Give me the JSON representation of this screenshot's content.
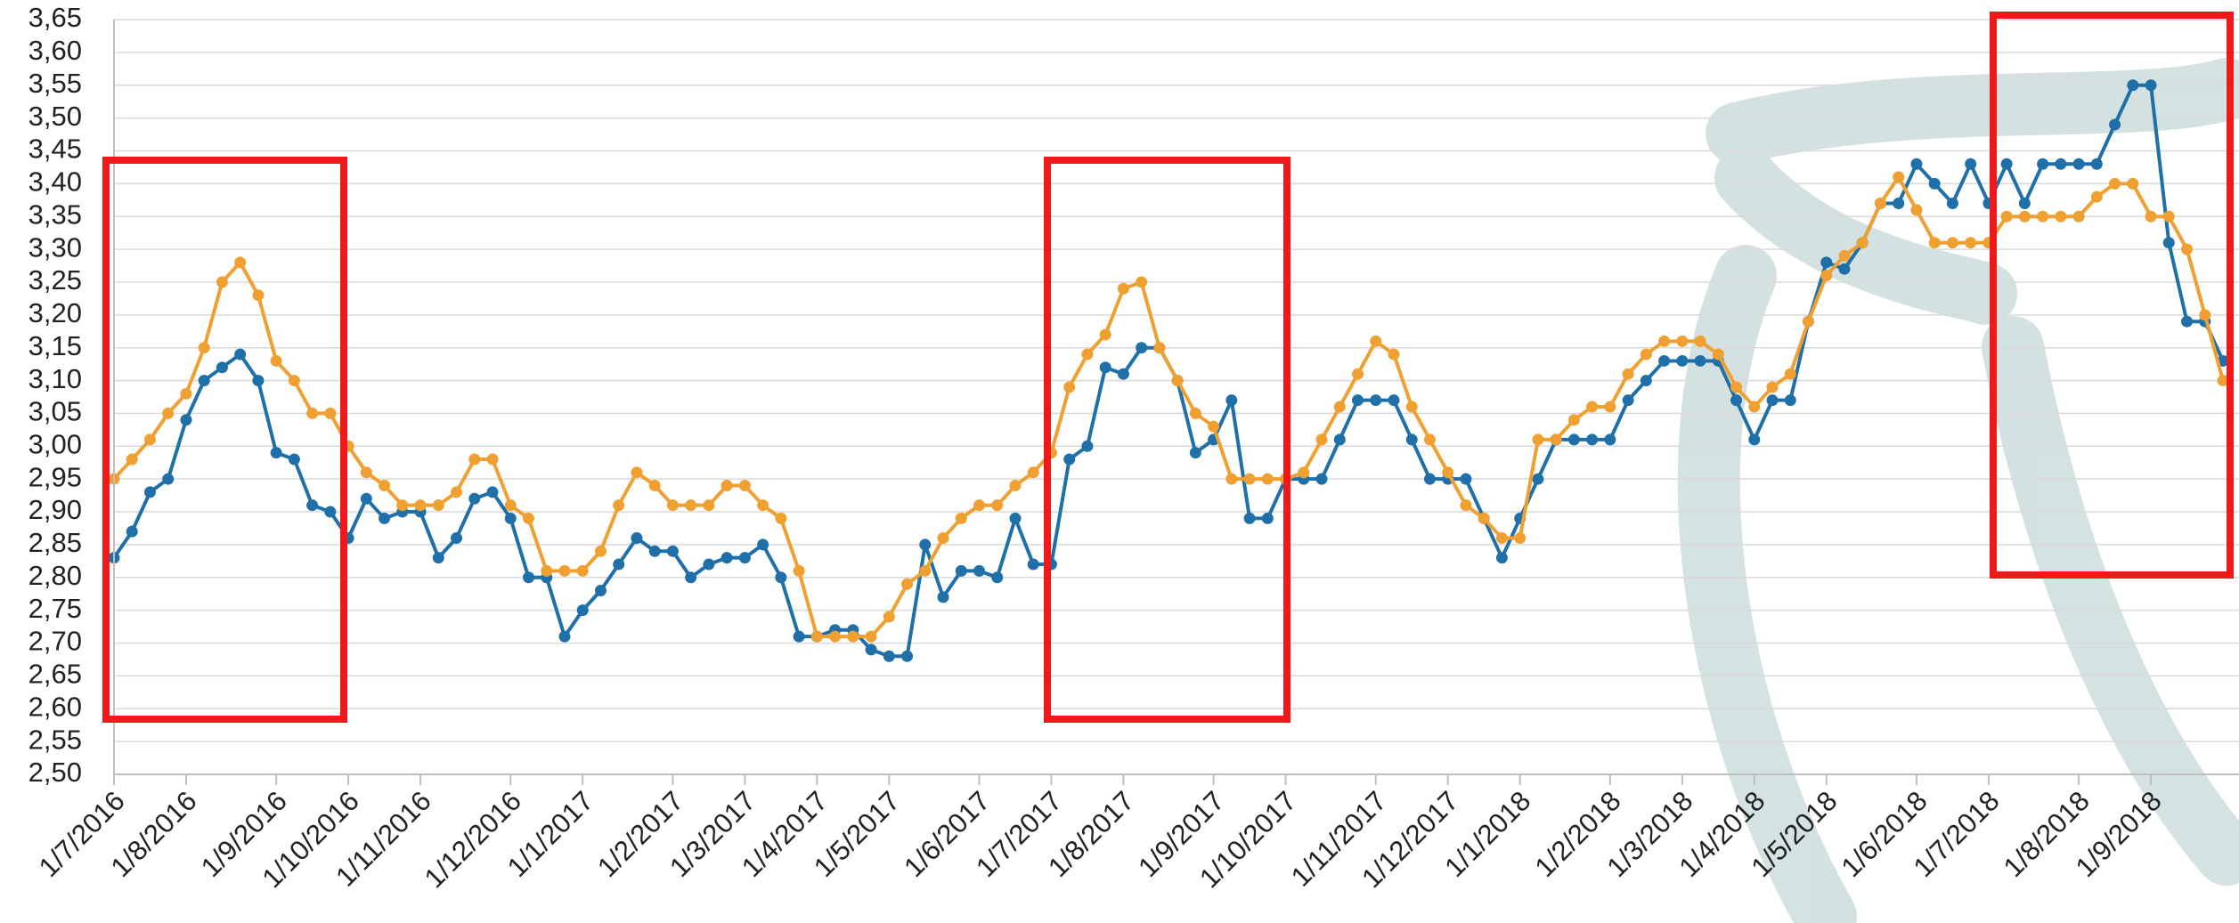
{
  "chart_data": {
    "type": "line",
    "categories": [
      "1/7/2016",
      null,
      null,
      null,
      "1/8/2016",
      null,
      null,
      null,
      null,
      "1/9/2016",
      null,
      null,
      null,
      "1/10/2016",
      null,
      null,
      null,
      "1/11/2016",
      null,
      null,
      null,
      null,
      "1/12/2016",
      null,
      null,
      null,
      "1/1/2017",
      null,
      null,
      null,
      null,
      "1/2/2017",
      null,
      null,
      null,
      "1/3/2017",
      null,
      null,
      null,
      "1/4/2017",
      null,
      null,
      null,
      "1/5/2017",
      null,
      null,
      null,
      null,
      "1/6/2017",
      null,
      null,
      null,
      "1/7/2017",
      null,
      null,
      null,
      "1/8/2017",
      null,
      null,
      null,
      null,
      "1/9/2017",
      null,
      null,
      null,
      "1/10/2017",
      null,
      null,
      null,
      null,
      "1/11/2017",
      null,
      null,
      null,
      "1/12/2017",
      null,
      null,
      null,
      "1/1/2018",
      null,
      null,
      null,
      null,
      "1/2/2018",
      null,
      null,
      null,
      "1/3/2018",
      null,
      null,
      null,
      "1/4/2018",
      null,
      null,
      null,
      "1/5/2018",
      null,
      null,
      null,
      null,
      "1/6/2018",
      null,
      null,
      null,
      "1/7/2018",
      null,
      null,
      null,
      null,
      "1/8/2018",
      null,
      null,
      null,
      "1/9/2018",
      null,
      null,
      null,
      null
    ],
    "series": [
      {
        "color": "#1f6fa8",
        "values": [
          2.83,
          2.87,
          2.93,
          2.95,
          3.04,
          3.1,
          3.12,
          3.14,
          3.1,
          2.99,
          2.98,
          2.91,
          2.9,
          2.86,
          2.92,
          2.89,
          2.9,
          2.9,
          2.83,
          2.86,
          2.92,
          2.93,
          2.89,
          2.8,
          2.8,
          2.71,
          2.75,
          2.78,
          2.82,
          2.86,
          2.84,
          2.84,
          2.8,
          2.82,
          2.83,
          2.83,
          2.85,
          2.8,
          2.71,
          2.71,
          2.72,
          2.72,
          2.69,
          2.68,
          2.68,
          2.85,
          2.77,
          2.81,
          2.81,
          2.8,
          2.89,
          2.82,
          2.82,
          2.98,
          3.0,
          3.12,
          3.11,
          3.15,
          3.15,
          3.1,
          2.99,
          3.01,
          3.07,
          2.89,
          2.89,
          2.95,
          2.95,
          2.95,
          3.01,
          3.07,
          3.07,
          3.07,
          3.01,
          2.95,
          2.95,
          2.95,
          2.89,
          2.83,
          2.89,
          2.95,
          3.01,
          3.01,
          3.01,
          3.01,
          3.07,
          3.1,
          3.13,
          3.13,
          3.13,
          3.13,
          3.07,
          3.01,
          3.07,
          3.07,
          3.19,
          3.28,
          3.27,
          3.31,
          3.37,
          3.37,
          3.43,
          3.4,
          3.37,
          3.43,
          3.37,
          3.43,
          3.37,
          3.43,
          3.43,
          3.43,
          3.43,
          3.49,
          3.55,
          3.55,
          3.31,
          3.19,
          3.19,
          3.13
        ]
      },
      {
        "color": "#f0a030",
        "values": [
          2.95,
          2.98,
          3.01,
          3.05,
          3.08,
          3.15,
          3.25,
          3.28,
          3.23,
          3.13,
          3.1,
          3.05,
          3.05,
          3.0,
          2.96,
          2.94,
          2.91,
          2.91,
          2.91,
          2.93,
          2.98,
          2.98,
          2.91,
          2.89,
          2.81,
          2.81,
          2.81,
          2.84,
          2.91,
          2.96,
          2.94,
          2.91,
          2.91,
          2.91,
          2.94,
          2.94,
          2.91,
          2.89,
          2.81,
          2.71,
          2.71,
          2.71,
          2.71,
          2.74,
          2.79,
          2.81,
          2.86,
          2.89,
          2.91,
          2.91,
          2.94,
          2.96,
          2.99,
          3.09,
          3.14,
          3.17,
          3.24,
          3.25,
          3.15,
          3.1,
          3.05,
          3.03,
          2.95,
          2.95,
          2.95,
          2.95,
          2.96,
          3.01,
          3.06,
          3.11,
          3.16,
          3.14,
          3.06,
          3.01,
          2.96,
          2.91,
          2.89,
          2.86,
          2.86,
          3.01,
          3.01,
          3.04,
          3.06,
          3.06,
          3.11,
          3.14,
          3.16,
          3.16,
          3.16,
          3.14,
          3.09,
          3.06,
          3.09,
          3.11,
          3.19,
          3.26,
          3.29,
          3.31,
          3.37,
          3.41,
          3.36,
          3.31,
          3.31,
          3.31,
          3.31,
          3.35,
          3.35,
          3.35,
          3.35,
          3.35,
          3.38,
          3.4,
          3.4,
          3.35,
          3.35,
          3.3,
          3.2,
          3.1
        ]
      }
    ],
    "ylim": [
      2.5,
      3.65
    ],
    "yticks": [
      {
        "value": 2.5,
        "label": "2,50"
      },
      {
        "value": 2.55,
        "label": "2,55"
      },
      {
        "value": 2.6,
        "label": "2,60"
      },
      {
        "value": 2.65,
        "label": "2,65"
      },
      {
        "value": 2.7,
        "label": "2,70"
      },
      {
        "value": 2.75,
        "label": "2,75"
      },
      {
        "value": 2.8,
        "label": "2,80"
      },
      {
        "value": 2.85,
        "label": "2,85"
      },
      {
        "value": 2.9,
        "label": "2,90"
      },
      {
        "value": 2.95,
        "label": "2,95"
      },
      {
        "value": 3.0,
        "label": "3,00"
      },
      {
        "value": 3.05,
        "label": "3,05"
      },
      {
        "value": 3.1,
        "label": "3,10"
      },
      {
        "value": 3.15,
        "label": "3,15"
      },
      {
        "value": 3.2,
        "label": "3,20"
      },
      {
        "value": 3.25,
        "label": "3,25"
      },
      {
        "value": 3.3,
        "label": "3,30"
      },
      {
        "value": 3.35,
        "label": "3,35"
      },
      {
        "value": 3.4,
        "label": "3,40"
      },
      {
        "value": 3.45,
        "label": "3,45"
      },
      {
        "value": 3.5,
        "label": "3,50"
      },
      {
        "value": 3.55,
        "label": "3,55"
      },
      {
        "value": 3.6,
        "label": "3,60"
      },
      {
        "value": 3.65,
        "label": "3,65"
      }
    ],
    "grid": true
  }
}
